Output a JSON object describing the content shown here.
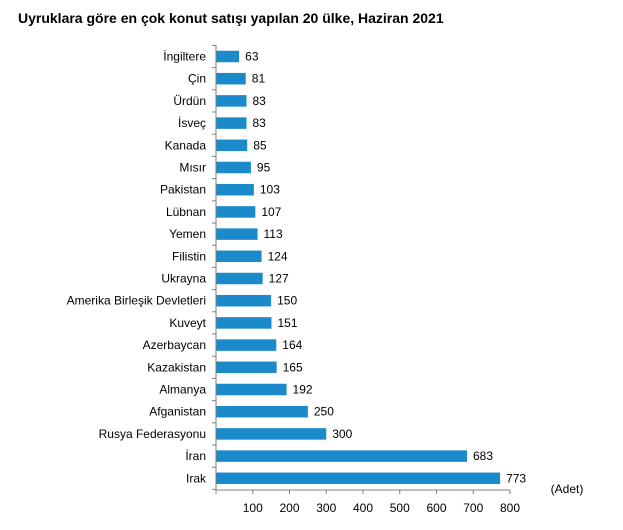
{
  "chart_data": {
    "type": "bar",
    "orientation": "horizontal",
    "title": "Uyruklara göre en çok konut satışı yapılan 20 ülke, Haziran 2021",
    "xlabel": "(Adet)",
    "ylabel": "",
    "xlim": [
      0,
      800
    ],
    "xticks": [
      0,
      100,
      200,
      300,
      400,
      500,
      600,
      700,
      800
    ],
    "xtick_labels": [
      "",
      "100",
      "200",
      "300",
      "400",
      "500",
      "600",
      "700",
      "800"
    ],
    "grid": false,
    "legend": "none",
    "bar_color": "#1b8acb",
    "categories": [
      "İngiltere",
      "Çin",
      "Ürdün",
      "İsveç",
      "Kanada",
      "Mısır",
      "Pakistan",
      "Lübnan",
      "Yemen",
      "Filistin",
      "Ukrayna",
      "Amerika Birleşik Devletleri",
      "Kuveyt",
      "Azerbaycan",
      "Kazakistan",
      "Almanya",
      "Afganistan",
      "Rusya Federasyonu",
      "İran",
      "Irak"
    ],
    "values": [
      63,
      81,
      83,
      83,
      85,
      95,
      103,
      107,
      113,
      124,
      127,
      150,
      151,
      164,
      165,
      192,
      250,
      300,
      683,
      773
    ]
  }
}
